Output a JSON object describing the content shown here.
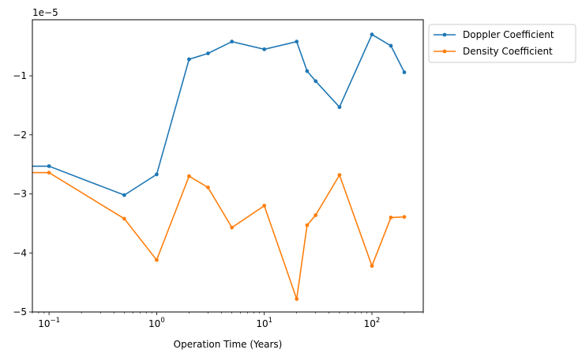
{
  "chart_data": {
    "type": "line",
    "title": "",
    "xlabel": "Operation Time (Years)",
    "ylabel": "",
    "xscale": "log",
    "xlim": [
      0.07,
      300
    ],
    "ylim": [
      -5.0,
      -0.05
    ],
    "y_offset_text": "1e−5",
    "grid": false,
    "legend_position": "outside-top-right",
    "x_ticks": [
      {
        "value": 0.1,
        "base": "10",
        "exp": "−1"
      },
      {
        "value": 1,
        "base": "10",
        "exp": "0"
      },
      {
        "value": 10,
        "base": "10",
        "exp": "1"
      },
      {
        "value": 100,
        "base": "10",
        "exp": "2"
      }
    ],
    "y_ticks": [
      {
        "value": -1,
        "label": "−1"
      },
      {
        "value": -2,
        "label": "−2"
      },
      {
        "value": -3,
        "label": "−3"
      },
      {
        "value": -4,
        "label": "−4"
      },
      {
        "value": -5,
        "label": "−5"
      }
    ],
    "series": [
      {
        "name": "Doppler Coefficient",
        "color": "#1f77b4",
        "x": [
          0.01,
          0.1,
          0.5,
          1,
          2,
          3,
          5,
          10,
          20,
          25,
          30,
          50,
          100,
          150,
          200
        ],
        "y": [
          -2.53,
          -2.53,
          -3.02,
          -2.67,
          -0.72,
          -0.62,
          -0.42,
          -0.55,
          -0.42,
          -0.92,
          -1.09,
          -1.53,
          -0.3,
          -0.49,
          -0.94
        ]
      },
      {
        "name": "Density Coefficient",
        "color": "#ff7f0e",
        "x": [
          0.01,
          0.1,
          0.5,
          1,
          2,
          3,
          5,
          10,
          20,
          25,
          30,
          50,
          100,
          150,
          200
        ],
        "y": [
          -2.64,
          -2.64,
          -3.42,
          -4.12,
          -2.7,
          -2.89,
          -3.57,
          -3.2,
          -4.78,
          -3.53,
          -3.36,
          -2.68,
          -4.22,
          -3.4,
          -3.39
        ]
      }
    ]
  }
}
